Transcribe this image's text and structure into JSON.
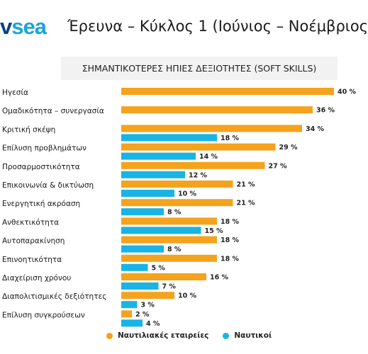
{
  "header": {
    "logo_part1": "v",
    "logo_part2": "sea",
    "title": "Έρευνα – Κύκλος 1 (Ιούνιος – Νοέμβριος"
  },
  "colors": {
    "companies": "#f5a21d",
    "seafarers": "#19b4e5",
    "logo_dark": "#0b3f86",
    "logo_light": "#1aa6d6"
  },
  "chart_data": {
    "type": "bar",
    "orientation": "horizontal",
    "title": "ΣΗΜΑΝΤΙΚΟΤΕΡΕΣ ΗΠΙΕΣ ΔΕΞΙΟΤΗΤΕΣ (SOFT SKILLS)",
    "xlim": [
      0,
      40
    ],
    "grid": false,
    "legend_position": "bottom",
    "categories": [
      "Ηγεσία",
      "Ομαδικότητα – συνεργασία",
      "Κριτική σκέψη",
      "Επίλυση προβλημάτων",
      "Προσαρμοστικότητα",
      "Επικοινωνία & δικτύωση",
      "Ενεργητική ακρόαση",
      "Ανθεκτικότητα",
      "Αυτοπαρακίνηση",
      "Επινοητικότητα",
      "Διαχείριση χρόνου",
      "Διαπολιτισμικές δεξιότητες",
      "Επίλυση συγκρούσεων"
    ],
    "series": [
      {
        "name": "Ναυτιλιακές εταιρείες",
        "color": "#f5a21d",
        "values": [
          40,
          36,
          34,
          29,
          27,
          21,
          21,
          18,
          18,
          18,
          16,
          10,
          2
        ],
        "labels": [
          "40 %",
          "36 %",
          "34 %",
          "29 %",
          "27 %",
          "21 %",
          "21 %",
          "18 %",
          "18 %",
          "18 %",
          "16 %",
          "10 %",
          "2 %"
        ]
      },
      {
        "name": "Ναυτικοί",
        "color": "#19b4e5",
        "values": [
          null,
          null,
          18,
          14,
          12,
          10,
          8,
          15,
          8,
          5,
          7,
          3,
          4
        ],
        "labels": [
          "",
          "",
          "18 %",
          "14 %",
          "12 %",
          "10 %",
          "8 %",
          "15 %",
          "8 %",
          "5 %",
          "7 %",
          "3 %",
          "4 %"
        ]
      }
    ]
  }
}
